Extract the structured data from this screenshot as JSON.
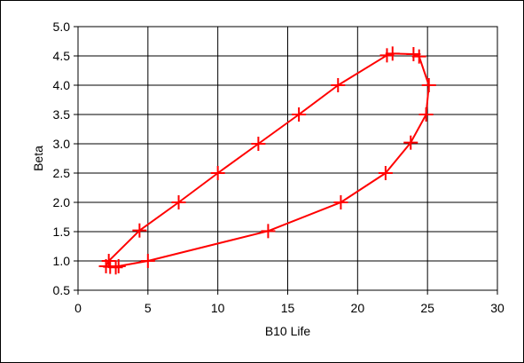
{
  "chart_data": {
    "type": "scatter",
    "title": "",
    "xlabel": "B10 Life",
    "ylabel": "Beta",
    "xlim": [
      0,
      30
    ],
    "ylim": [
      0.5,
      5.0
    ],
    "x_ticks": [
      0,
      5,
      10,
      15,
      20,
      25,
      30
    ],
    "y_ticks": [
      0.5,
      1.0,
      1.5,
      2.0,
      2.5,
      3.0,
      3.5,
      4.0,
      4.5,
      5.0
    ],
    "x_tick_labels": [
      "0",
      "5",
      "10",
      "15",
      "20",
      "25",
      "30"
    ],
    "y_tick_labels": [
      "0.5",
      "1.0",
      "1.5",
      "2.0",
      "2.5",
      "3.0",
      "3.5",
      "4.0",
      "4.5",
      "5.0"
    ],
    "grid": true,
    "legend": "none",
    "series": [
      {
        "color": "#ff0000",
        "marker": "plus",
        "closed": true,
        "points": [
          [
            2.0,
            0.91
          ],
          [
            2.2,
            1.0
          ],
          [
            4.4,
            1.52
          ],
          [
            7.2,
            2.0
          ],
          [
            10.0,
            2.5
          ],
          [
            12.9,
            3.0
          ],
          [
            15.8,
            3.5
          ],
          [
            18.6,
            4.0
          ],
          [
            22.1,
            4.51
          ],
          [
            22.5,
            4.54
          ],
          [
            24.0,
            4.53
          ],
          [
            24.4,
            4.49
          ],
          [
            25.1,
            4.0
          ],
          [
            24.9,
            3.5
          ],
          [
            23.8,
            3.02
          ],
          [
            22.0,
            2.5
          ],
          [
            18.8,
            2.0
          ],
          [
            13.6,
            1.51
          ],
          [
            5.0,
            1.0
          ],
          [
            2.9,
            0.91
          ],
          [
            2.7,
            0.89
          ],
          [
            2.3,
            0.9
          ]
        ]
      }
    ]
  }
}
